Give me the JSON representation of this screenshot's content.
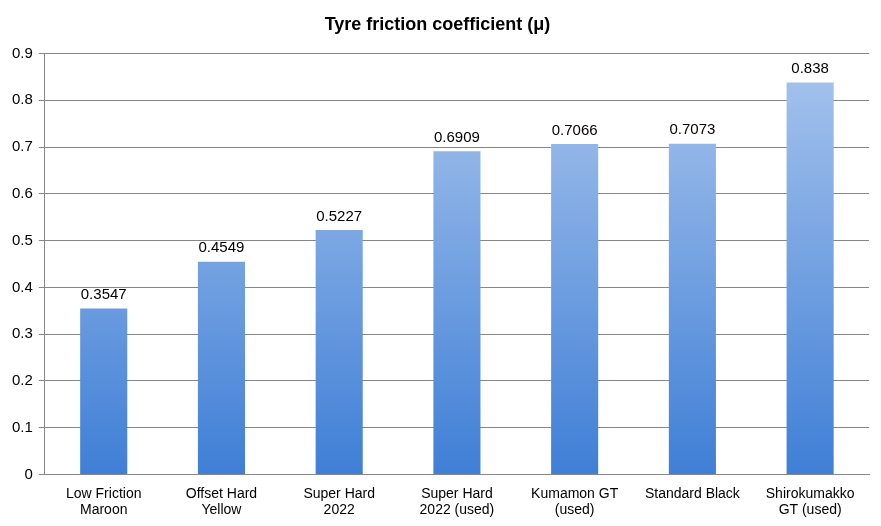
{
  "chart_data": {
    "type": "bar",
    "title": "Tyre friction coefficient (μ)",
    "categories": [
      "Low Friction\nMaroon",
      "Offset Hard\nYellow",
      "Super Hard\n2022",
      "Super Hard\n2022 (used)",
      "Kumamon GT\n(used)",
      "Standard Black",
      "Shirokumakko\nGT (used)"
    ],
    "values": [
      0.3547,
      0.4549,
      0.5227,
      0.6909,
      0.7066,
      0.7073,
      0.838
    ],
    "color": "#3f7fd6",
    "ylim": [
      0,
      0.9
    ],
    "yticks": [
      0,
      0.1,
      0.2,
      0.3,
      0.4,
      0.5,
      0.6,
      0.7,
      0.8,
      0.9
    ],
    "grid": true,
    "data_labels": true
  }
}
